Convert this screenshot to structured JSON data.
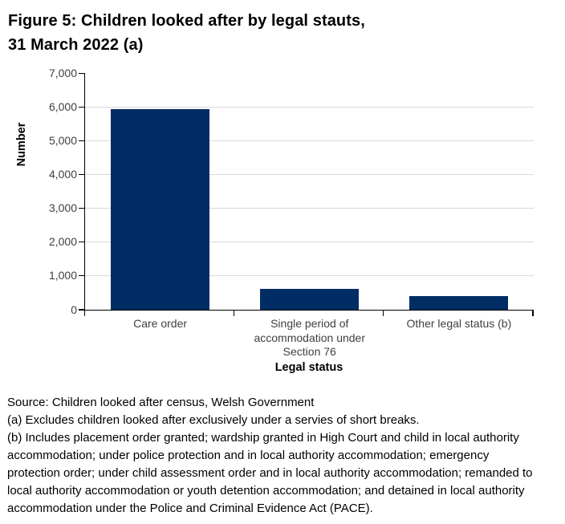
{
  "figure": {
    "title_lines": [
      "Figure 5: Children looked after by legal stauts,",
      "31 March 2022 (a)"
    ]
  },
  "chart_data": {
    "type": "bar",
    "title": "Figure 5: Children looked after by legal stauts, 31 March 2022 (a)",
    "categories": [
      "Care order",
      "Single period of accommodation under Section 76",
      "Other legal status (b)"
    ],
    "values": [
      5950,
      615,
      410
    ],
    "xlabel": "Legal status",
    "ylabel": "Number",
    "ylim": [
      0,
      7000
    ],
    "ytick_interval": 1000,
    "ytick_labels": [
      "7,000",
      "6,000",
      "5,000",
      "4,000",
      "3,000",
      "2,000",
      "1,000",
      "0"
    ],
    "grid": true,
    "legend": "none",
    "bar_color": "#002d64",
    "gridline_color": "#d9d9d9"
  },
  "footer": {
    "lines": [
      "Source: Children looked after census, Welsh Government",
      "(a) Excludes children looked after exclusively under a servies of short breaks.",
      "(b) Includes placement order granted; wardship granted in High Court and child in local authority",
      "accommodation; under police protection and in local authority accommodation; emergency",
      "protection order; under child assessment order and in local authority accommodation; remanded to",
      "local authority accommodation or youth detention accommodation; and detained in local authority",
      "accommodation under the Police and Criminal Evidence Act (PACE)."
    ],
    "source_text": "Source: Children looked after census, Welsh Government",
    "note_a": "(a) Excludes children looked after exclusively under a servies of short breaks.",
    "note_b": "(b) Includes placement order granted; wardship granted in High Court and child in local authority accommodation; under police protection and in local authority accommodation; emergency protection order; under child assessment order and in local authority accommodation; remanded to local authority accommodation or youth detention accommodation; and detained in local authority accommodation under the Police and Criminal Evidence Act (PACE)."
  }
}
